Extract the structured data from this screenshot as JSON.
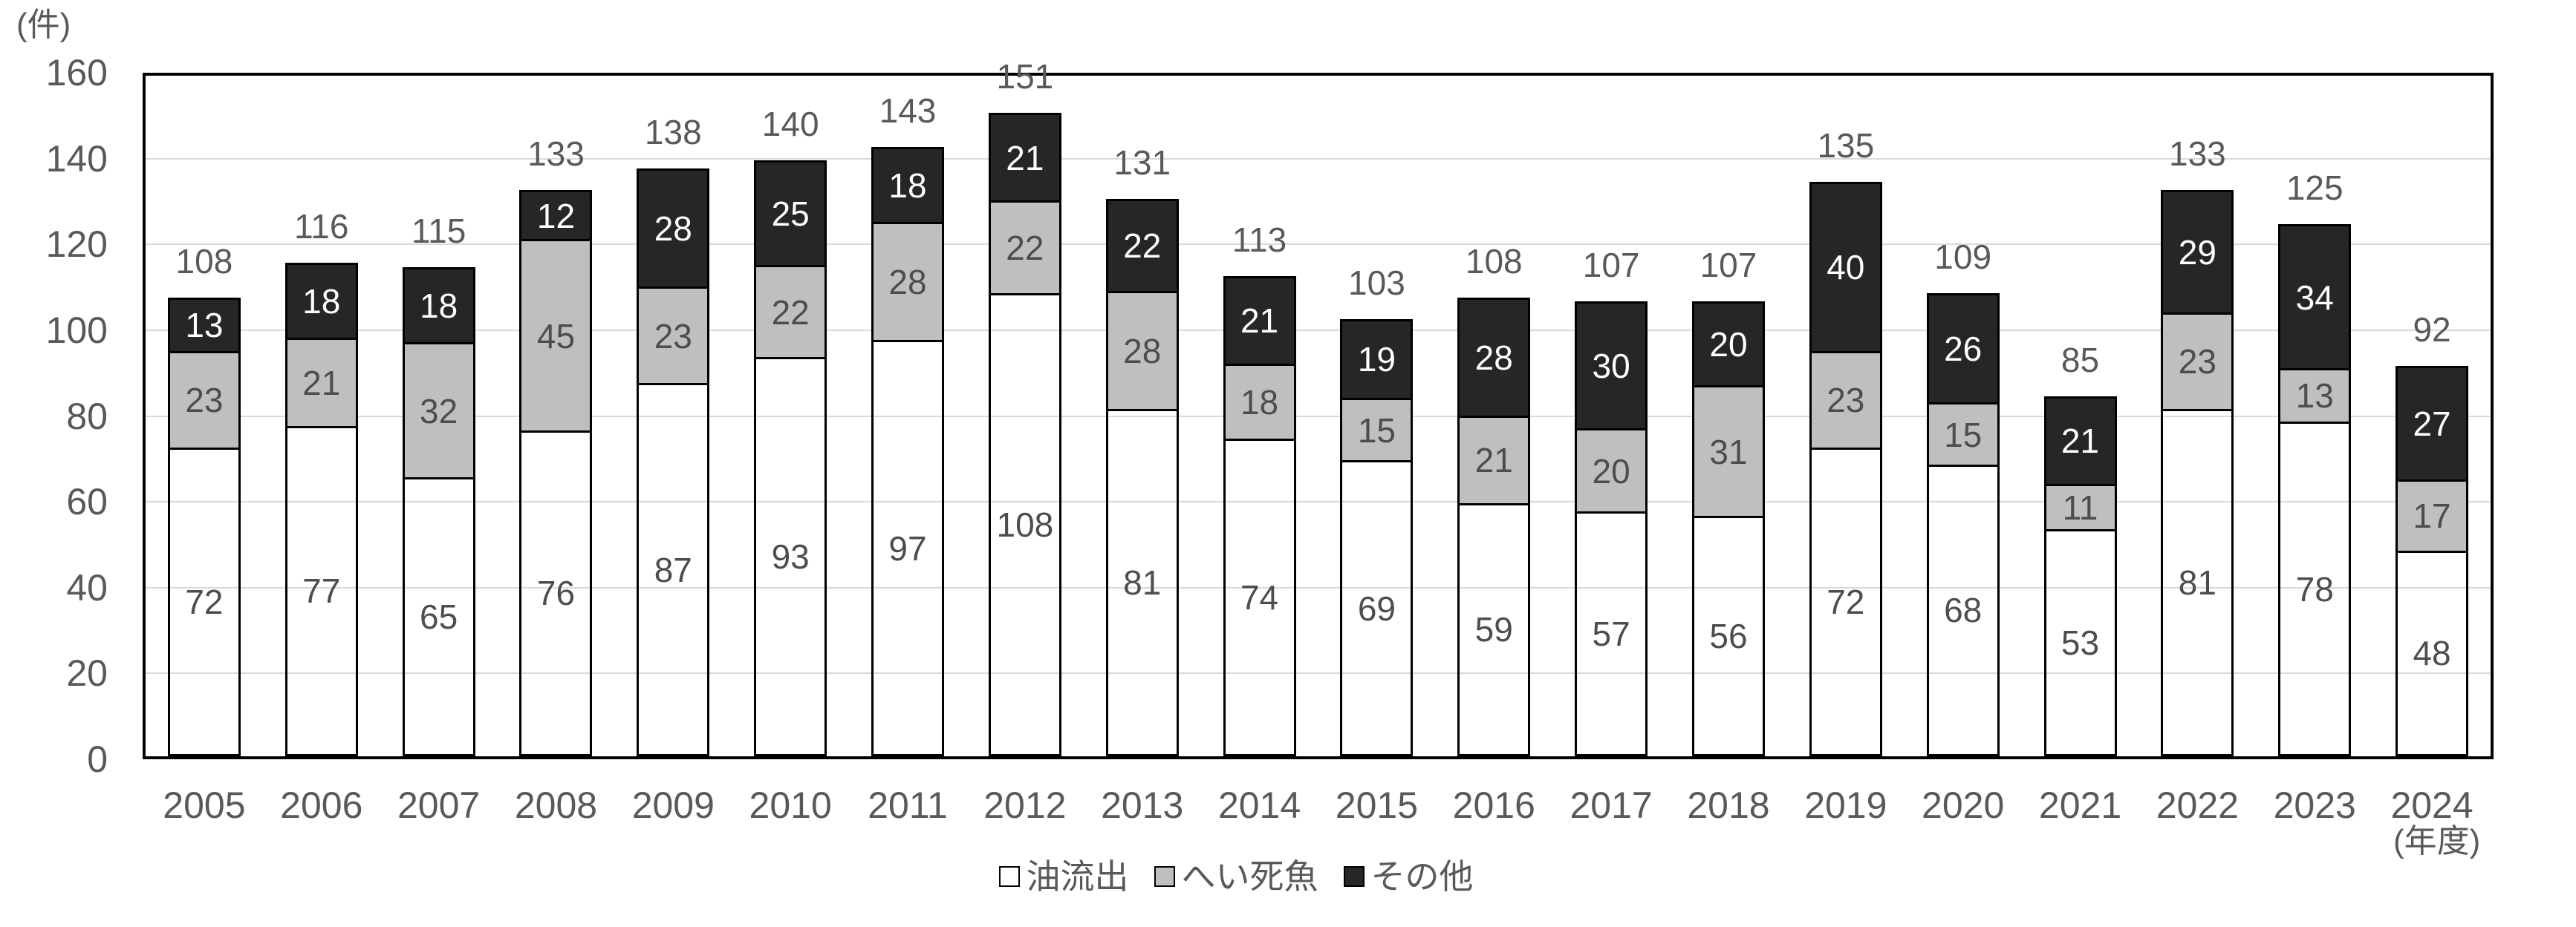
{
  "chart_data": {
    "type": "bar",
    "stacked": true,
    "unit_label": "(件)",
    "x_unit_label": "(年度)",
    "categories": [
      "2005",
      "2006",
      "2007",
      "2008",
      "2009",
      "2010",
      "2011",
      "2012",
      "2013",
      "2014",
      "2015",
      "2016",
      "2017",
      "2018",
      "2019",
      "2020",
      "2021",
      "2022",
      "2023",
      "2024"
    ],
    "series": [
      {
        "name": "油流出",
        "color": "#ffffff",
        "label_color": "#4d4d4d",
        "values": [
          72,
          77,
          65,
          76,
          87,
          93,
          97,
          108,
          81,
          74,
          69,
          59,
          57,
          56,
          72,
          68,
          53,
          81,
          78,
          48
        ]
      },
      {
        "name": "へい死魚",
        "color": "#bfbfbf",
        "label_color": "#4d4d4d",
        "values": [
          23,
          21,
          32,
          45,
          23,
          22,
          28,
          22,
          28,
          18,
          15,
          21,
          20,
          31,
          23,
          15,
          11,
          23,
          13,
          17
        ]
      },
      {
        "name": "その他",
        "color": "#262626",
        "label_color": "#ffffff",
        "values": [
          13,
          18,
          18,
          12,
          28,
          25,
          18,
          21,
          22,
          21,
          19,
          28,
          30,
          20,
          40,
          26,
          21,
          29,
          34,
          27
        ]
      }
    ],
    "totals": [
      108,
      116,
      115,
      133,
      138,
      140,
      143,
      151,
      131,
      113,
      103,
      108,
      107,
      107,
      135,
      109,
      85,
      133,
      125,
      92
    ],
    "ylim": [
      0,
      160
    ],
    "yticks": [
      0,
      20,
      40,
      60,
      80,
      100,
      120,
      140,
      160
    ],
    "grid": true,
    "legend_position": "bottom",
    "axis_text_color": "#595959",
    "gridline_color": "#d9d9d9",
    "bar_border_color": "#000000"
  }
}
